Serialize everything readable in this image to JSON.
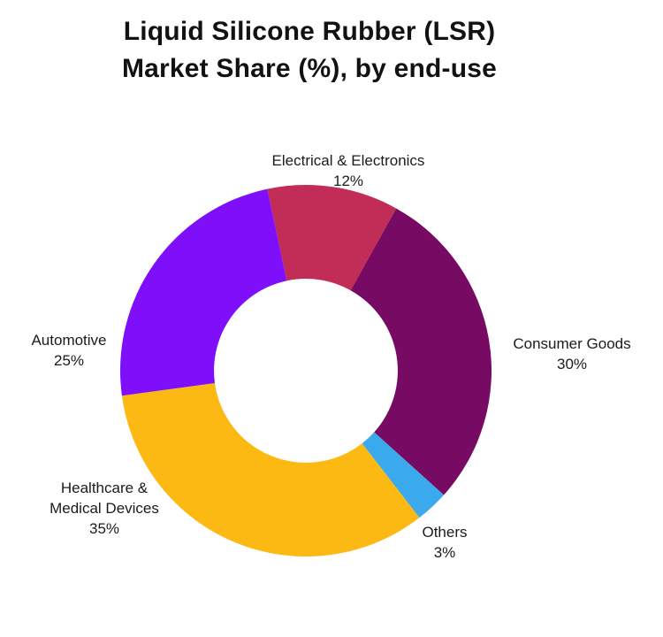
{
  "page": {
    "background": "#ffffff",
    "text_color": "#1b1b1b",
    "title_color": "#121212"
  },
  "chart_data": {
    "type": "pie",
    "subtype": "donut",
    "title": "Liquid Silicone Rubber (LSR) Market Share (%), by end-use",
    "title_lines": [
      "Liquid Silicone Rubber (LSR)",
      "Market Share (%), by end-use"
    ],
    "unit": "%",
    "segments": [
      {
        "name": "Electrical & Electronics",
        "value": 12,
        "pct_label": "12%",
        "color": "#C22D58",
        "label_lines": [
          "Electrical & Electronics"
        ]
      },
      {
        "name": "Consumer Goods",
        "value": 30,
        "pct_label": "30%",
        "color": "#770B63",
        "label_lines": [
          "Consumer Goods"
        ]
      },
      {
        "name": "Others",
        "value": 3,
        "pct_label": "3%",
        "color": "#3AAAEC",
        "label_lines": [
          "Others"
        ]
      },
      {
        "name": "Healthcare & Medical Devices",
        "value": 35,
        "pct_label": "35%",
        "color": "#FCB813",
        "label_lines": [
          "Healthcare &",
          "Medical Devices"
        ]
      },
      {
        "name": "Automotive",
        "value": 25,
        "pct_label": "25%",
        "color": "#7F0FFB",
        "label_lines": [
          "Automotive"
        ]
      }
    ],
    "layout": {
      "start_angle_deg": 102,
      "direction": "clockwise",
      "inner_radius_ratio": 0.495,
      "label_position": "outside",
      "legend": "none",
      "grid": "off"
    }
  }
}
